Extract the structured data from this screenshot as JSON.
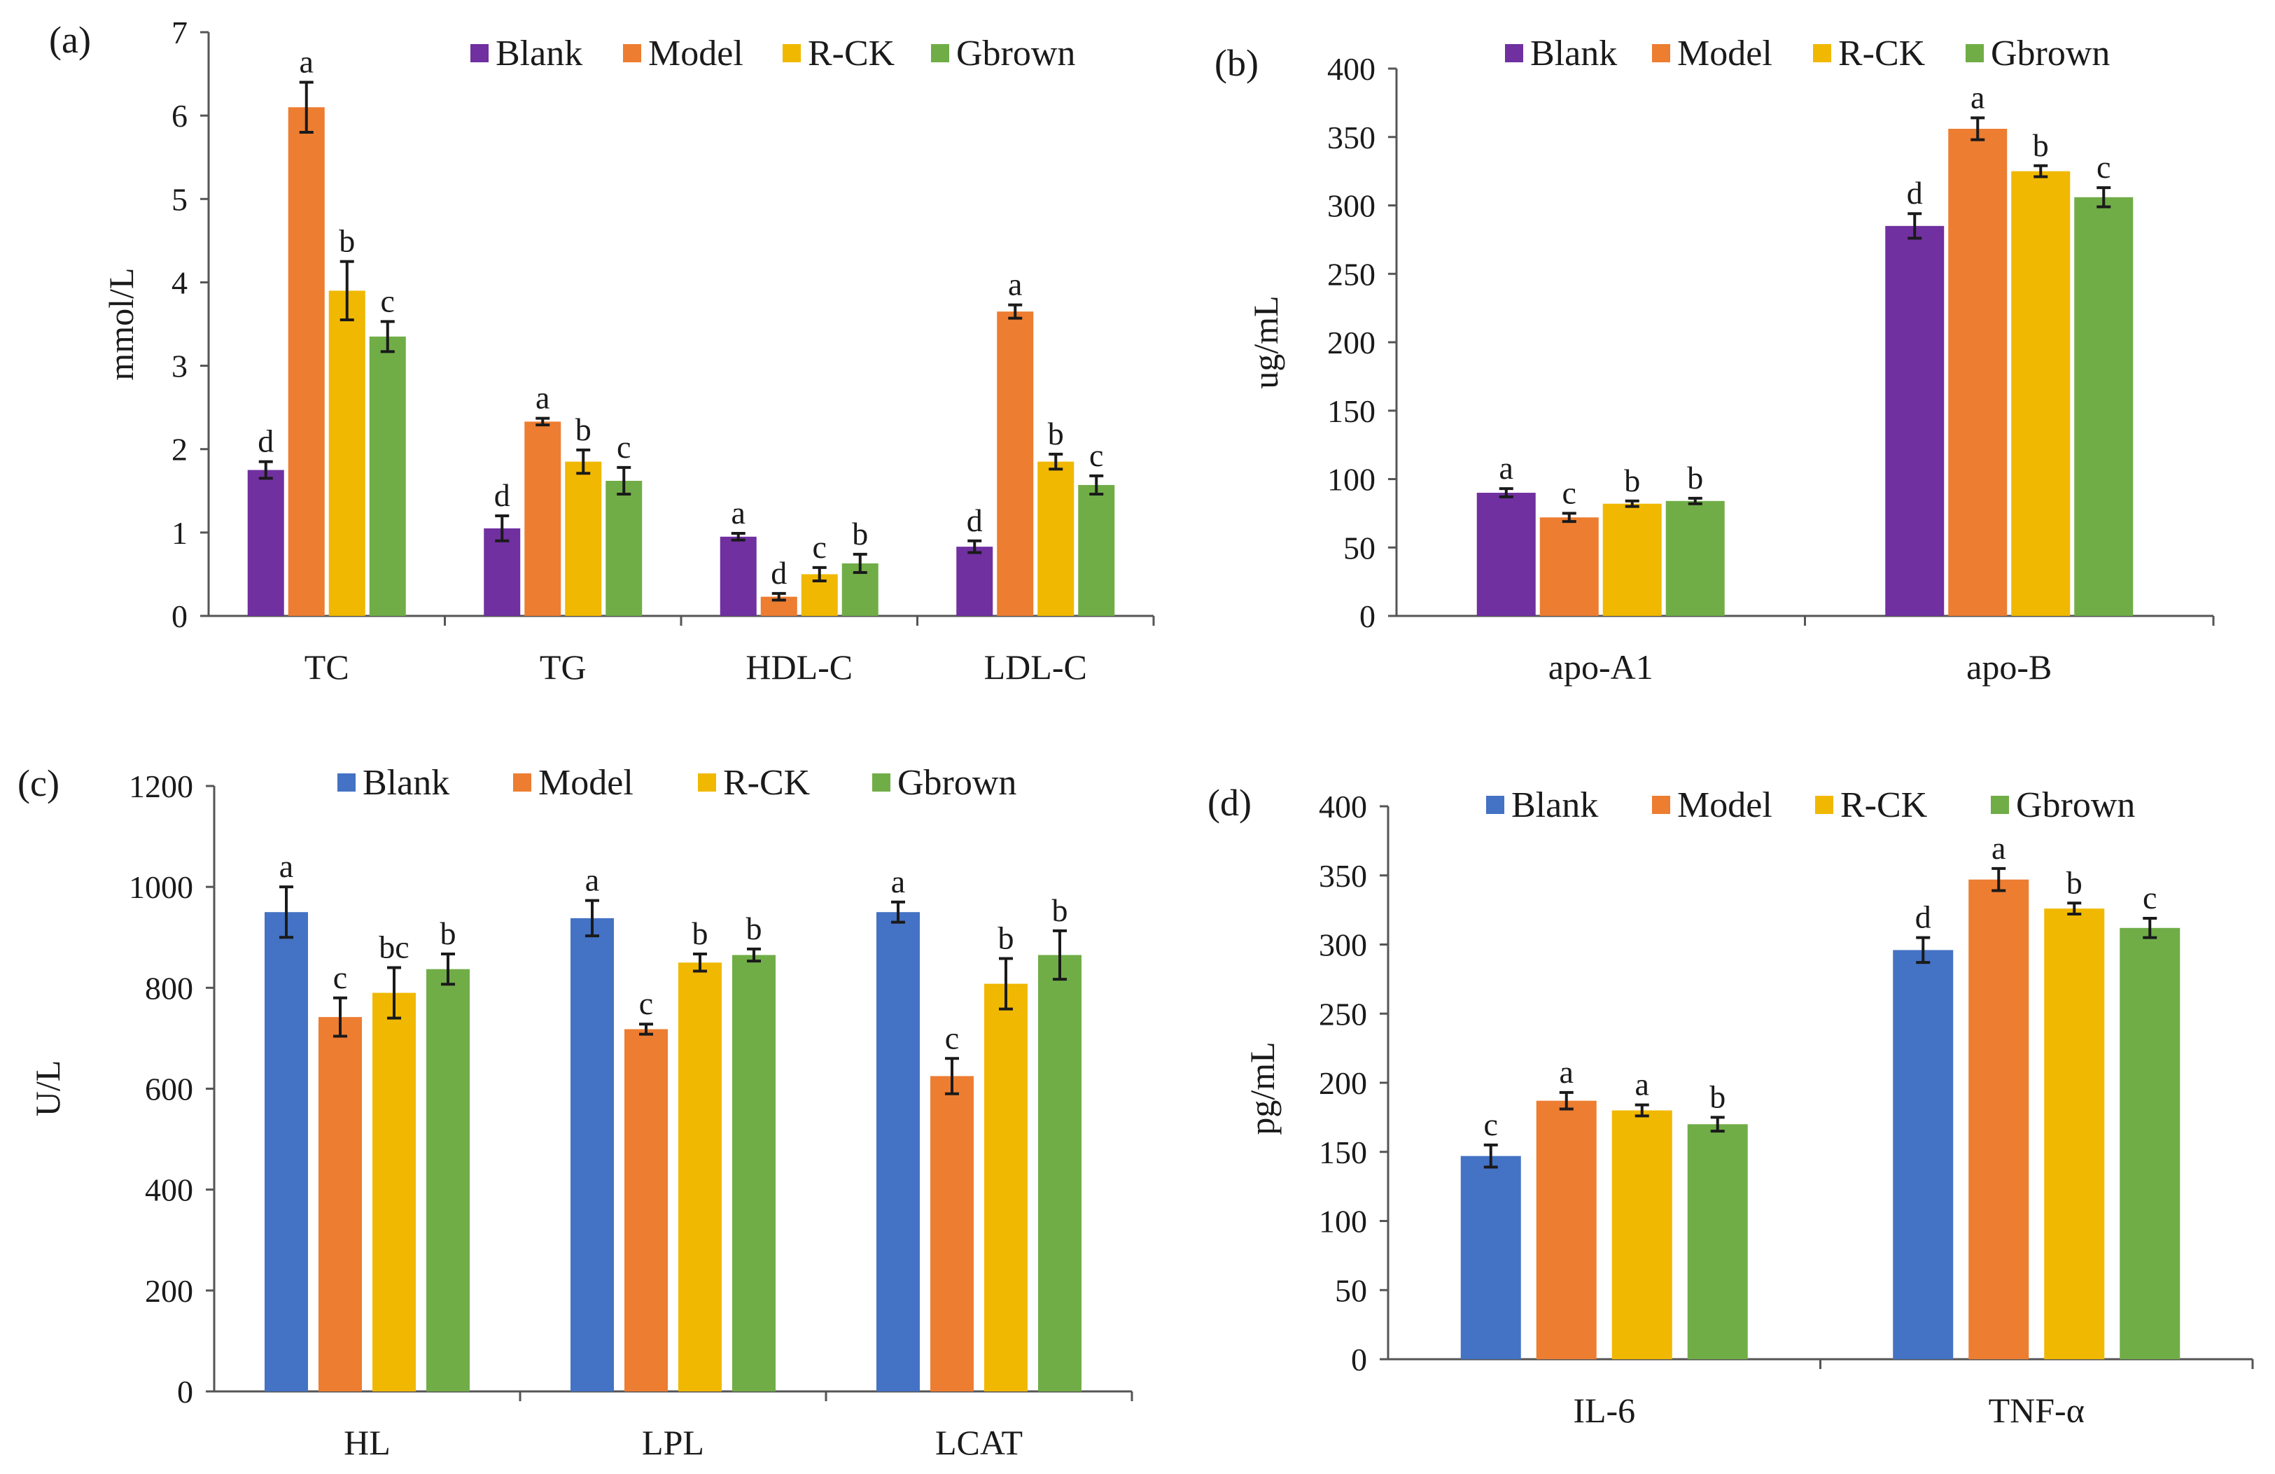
{
  "colors": {
    "purple": "#7030A0",
    "orange": "#ED7D31",
    "yellow": "#F0B800",
    "green": "#70AD47",
    "blue": "#4472C4"
  },
  "chart_data": [
    {
      "panel": "(a)",
      "type": "bar",
      "ylabel": "mmol/L",
      "ylim": [
        0,
        7
      ],
      "yticks": [
        0,
        1,
        2,
        3,
        4,
        5,
        6,
        7
      ],
      "categories": [
        "TC",
        "TG",
        "HDL-C",
        "LDL-C"
      ],
      "legend": "top",
      "series": [
        {
          "name": "Blank",
          "color": "#7030A0",
          "values": [
            1.75,
            1.05,
            0.95,
            0.83
          ],
          "errors": [
            0.1,
            0.15,
            0.04,
            0.07
          ],
          "letters": [
            "d",
            "d",
            "a",
            "d"
          ]
        },
        {
          "name": "Model",
          "color": "#ED7D31",
          "values": [
            6.1,
            2.33,
            0.23,
            3.65
          ],
          "errors": [
            0.3,
            0.04,
            0.04,
            0.08
          ],
          "letters": [
            "a",
            "a",
            "d",
            "a"
          ]
        },
        {
          "name": "R-CK",
          "color": "#F0B800",
          "values": [
            3.9,
            1.85,
            0.5,
            1.85
          ],
          "errors": [
            0.35,
            0.14,
            0.08,
            0.09
          ],
          "letters": [
            "b",
            "b",
            "c",
            "b"
          ]
        },
        {
          "name": "Gbrown",
          "color": "#70AD47",
          "values": [
            3.35,
            1.62,
            0.63,
            1.57
          ],
          "errors": [
            0.18,
            0.16,
            0.11,
            0.11
          ],
          "letters": [
            "c",
            "c",
            "b",
            "c"
          ]
        }
      ]
    },
    {
      "panel": "(b)",
      "type": "bar",
      "ylabel": "ug/mL",
      "ylim": [
        0,
        400
      ],
      "yticks": [
        0,
        50,
        100,
        150,
        200,
        250,
        300,
        350,
        400
      ],
      "categories": [
        "apo-A1",
        "apo-B"
      ],
      "legend": "top",
      "series": [
        {
          "name": "Blank",
          "color": "#7030A0",
          "values": [
            90,
            285
          ],
          "errors": [
            3,
            9
          ],
          "letters": [
            "a",
            "d"
          ]
        },
        {
          "name": "Model",
          "color": "#ED7D31",
          "values": [
            72,
            356
          ],
          "errors": [
            3,
            8
          ],
          "letters": [
            "c",
            "a"
          ]
        },
        {
          "name": "R-CK",
          "color": "#F0B800",
          "values": [
            82,
            325
          ],
          "errors": [
            2,
            4
          ],
          "letters": [
            "b",
            "b"
          ]
        },
        {
          "name": "Gbrown",
          "color": "#70AD47",
          "values": [
            84,
            306
          ],
          "errors": [
            2,
            7
          ],
          "letters": [
            "b",
            "c"
          ]
        }
      ]
    },
    {
      "panel": "(c)",
      "type": "bar",
      "ylabel": "U/L",
      "ylim": [
        0,
        1200
      ],
      "yticks": [
        0,
        200,
        400,
        600,
        800,
        1000,
        1200
      ],
      "categories": [
        "HL",
        "LPL",
        "LCAT"
      ],
      "legend": "top",
      "series": [
        {
          "name": "Blank",
          "color": "#4472C4",
          "values": [
            950,
            938,
            950
          ],
          "errors": [
            50,
            35,
            20
          ],
          "letters": [
            "a",
            "a",
            "a"
          ]
        },
        {
          "name": "Model",
          "color": "#ED7D31",
          "values": [
            742,
            718,
            625
          ],
          "errors": [
            38,
            10,
            35
          ],
          "letters": [
            "c",
            "c",
            "c"
          ]
        },
        {
          "name": "R-CK",
          "color": "#F0B800",
          "values": [
            790,
            850,
            808
          ],
          "errors": [
            50,
            17,
            50
          ],
          "letters": [
            "bc",
            "b",
            "b"
          ]
        },
        {
          "name": "Gbrown",
          "color": "#70AD47",
          "values": [
            837,
            865,
            865
          ],
          "errors": [
            30,
            12,
            48
          ],
          "letters": [
            "b",
            "b",
            "b"
          ]
        }
      ]
    },
    {
      "panel": "(d)",
      "type": "bar",
      "ylabel": "pg/mL",
      "ylim": [
        0,
        400
      ],
      "yticks": [
        0,
        50,
        100,
        150,
        200,
        250,
        300,
        350,
        400
      ],
      "categories": [
        "IL-6",
        "TNF-α"
      ],
      "legend": "top",
      "series": [
        {
          "name": "Blank",
          "color": "#4472C4",
          "values": [
            147,
            296
          ],
          "errors": [
            8,
            9
          ],
          "letters": [
            "c",
            "d"
          ]
        },
        {
          "name": "Model",
          "color": "#ED7D31",
          "values": [
            187,
            347
          ],
          "errors": [
            6,
            8
          ],
          "letters": [
            "a",
            "a"
          ]
        },
        {
          "name": "R-CK",
          "color": "#F0B800",
          "values": [
            180,
            326
          ],
          "errors": [
            4,
            4
          ],
          "letters": [
            "a",
            "b"
          ]
        },
        {
          "name": "Gbrown",
          "color": "#70AD47",
          "values": [
            170,
            312
          ],
          "errors": [
            5,
            7
          ],
          "letters": [
            "b",
            "c"
          ]
        }
      ]
    }
  ]
}
